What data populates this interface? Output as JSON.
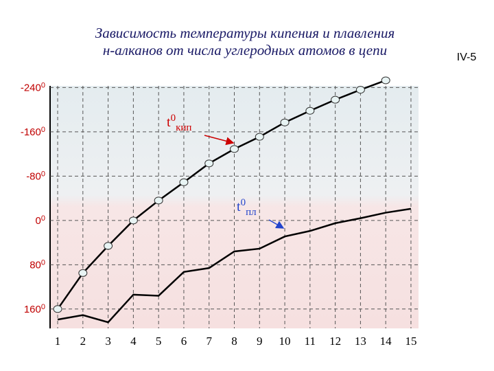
{
  "chart_data": {
    "type": "line",
    "title": [
      "Зависимость температуры кипения и плавления",
      "н-алканов от числа углеродных атомов в цепи"
    ],
    "slide_label": "IV-5",
    "y_unit": "0",
    "x": [
      1,
      2,
      3,
      4,
      5,
      6,
      7,
      8,
      9,
      10,
      11,
      12,
      13,
      14,
      15
    ],
    "xlim": [
      0.7,
      15.3
    ],
    "xticks": [
      1,
      2,
      3,
      4,
      5,
      6,
      7,
      8,
      9,
      10,
      11,
      12,
      13,
      14,
      15
    ],
    "ylim": [
      195,
      -243
    ],
    "yticks": [
      -240,
      -160,
      -80,
      0,
      80,
      160
    ],
    "grid": true,
    "series": [
      {
        "name": "кип",
        "color": "#000000",
        "markers": true,
        "values": [
          160,
          95,
          46,
          0,
          -36,
          -69,
          -103,
          -129,
          -151,
          -177,
          -198,
          -218,
          -236,
          -253,
          null
        ]
      },
      {
        "name": "пл",
        "color": "#000000",
        "markers": false,
        "values": [
          179,
          171,
          184,
          134,
          136,
          93,
          86,
          56,
          51,
          29,
          19,
          5,
          -4,
          -14,
          -21
        ]
      }
    ],
    "annotations": [
      {
        "text": "t",
        "sup": "0",
        "sub": "кип",
        "color": "#cc0000"
      },
      {
        "text": "t",
        "sup": "0",
        "sub": "пл",
        "color": "#2244cc"
      }
    ]
  }
}
